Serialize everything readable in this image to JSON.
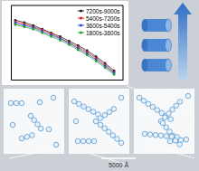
{
  "chart_data": {
    "type": "scatter",
    "x": [
      0.04,
      0.12,
      0.2,
      0.28,
      0.36,
      0.44,
      0.52,
      0.6,
      0.68,
      0.76,
      0.84,
      0.92
    ],
    "series": [
      {
        "name": "7200s-9000s",
        "color": "#222222",
        "marker": "circle",
        "line_style": "solid",
        "values": [
          0.8,
          0.77,
          0.73,
          0.68,
          0.63,
          0.58,
          0.52,
          0.46,
          0.39,
          0.31,
          0.22,
          0.12
        ]
      },
      {
        "name": "5400s-7200s",
        "color": "#d62728",
        "marker": "circle",
        "line_style": "solid",
        "values": [
          0.78,
          0.75,
          0.71,
          0.67,
          0.62,
          0.56,
          0.5,
          0.44,
          0.37,
          0.29,
          0.2,
          0.1
        ]
      },
      {
        "name": "3600s-5400s",
        "color": "#1f4fd6",
        "marker": "circle",
        "line_style": "solid",
        "values": [
          0.76,
          0.73,
          0.7,
          0.65,
          0.6,
          0.55,
          0.49,
          0.42,
          0.35,
          0.27,
          0.18,
          0.09
        ]
      },
      {
        "name": "1800s-3600s",
        "color": "#2ca02c",
        "marker": "circle",
        "line_style": "solid",
        "values": [
          0.74,
          0.71,
          0.68,
          0.63,
          0.58,
          0.53,
          0.47,
          0.4,
          0.33,
          0.25,
          0.16,
          0.07
        ]
      }
    ],
    "xlim": [
      0,
      1
    ],
    "ylim": [
      0,
      1
    ],
    "tick_labels": false,
    "legend": "upper right",
    "grid": false
  },
  "scale_bar": {
    "label": "5000 Å"
  }
}
